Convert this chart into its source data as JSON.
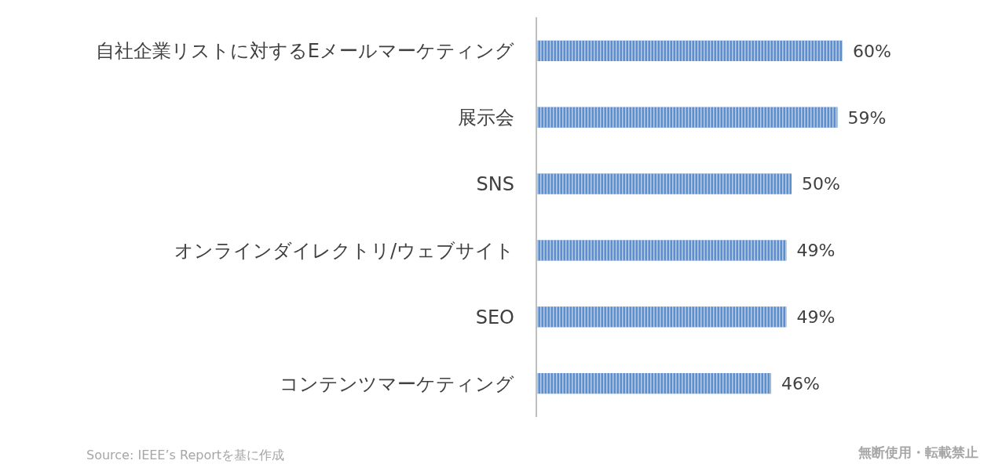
{
  "chart_data": {
    "type": "bar",
    "orientation": "horizontal",
    "categories": [
      "自社企業リストに対するEメールマーケティング",
      "展示会",
      "SNS",
      "オンラインダイレクトリ/ウェブサイト",
      "SEO",
      "コンテンツマーケティング"
    ],
    "values": [
      60,
      59,
      50,
      49,
      49,
      46
    ],
    "value_labels": [
      "60%",
      "59%",
      "50%",
      "49%",
      "49%",
      "46%"
    ],
    "color": "#5b8fd0",
    "annotations": [
      "Source: IEEE’s Reportを基に作成",
      "無断使用・転載禁止"
    ]
  }
}
